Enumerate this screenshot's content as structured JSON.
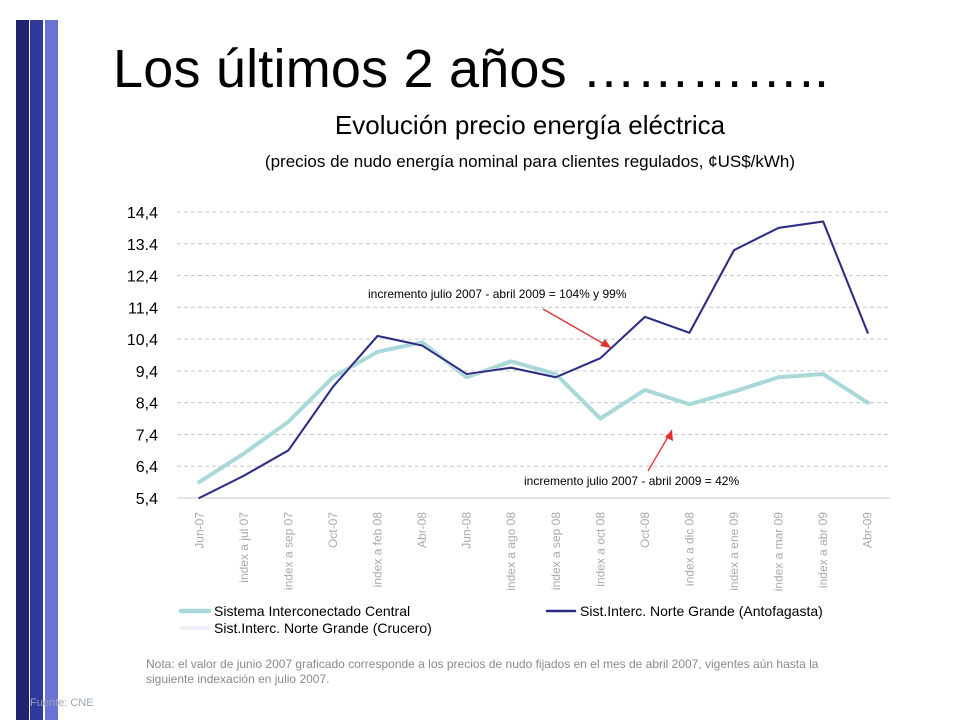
{
  "slide": {
    "title": "Los últimos 2 años …………..",
    "note": "Nota: el valor de junio 2007 graficado corresponde a los precios de nudo fijados en el mes de abril 2007, vigentes aún hasta la siguiente  indexación en julio 2007.",
    "source": "Fuente: CNE"
  },
  "chart_data": {
    "type": "line",
    "title": "Evolución precio energía eléctrica",
    "subtitle": "(precios de nudo energía nominal para clientes regulados, ¢US$/kWh)",
    "categories": [
      "Jun-07",
      "index a jul 07",
      "index a sep 07",
      "Oct-07",
      "index a feb 08",
      "Abr-08",
      "Jun-08",
      "index a ago 08",
      "index a sep 08",
      "index a oct 08",
      "Oct-08",
      "index a dic 08",
      "index a ene 09",
      "index a mar 09",
      "index a abr 09",
      "Abr-09"
    ],
    "yticks": [
      "5,4",
      "6,4",
      "7,4",
      "8,4",
      "9,4",
      "10,4",
      "11,4",
      "12,4",
      "13.4",
      "14,4"
    ],
    "ylim": [
      5.4,
      14.4
    ],
    "grid": true,
    "legend_position": "bottom",
    "series": [
      {
        "name": "Sistema Interconectado Central",
        "color": "#a8d8d8",
        "width": 4,
        "values": [
          5.9,
          6.8,
          7.8,
          9.2,
          10.0,
          10.3,
          9.2,
          9.7,
          9.3,
          7.9,
          8.8,
          8.35,
          8.75,
          9.2,
          9.3,
          8.4
        ]
      },
      {
        "name": "Sist.Interc. Norte Grande (Antofagasta)",
        "color": "#2a2c80",
        "width": 2,
        "values": [
          5.4,
          6.1,
          6.9,
          8.9,
          10.5,
          10.2,
          9.3,
          9.5,
          9.2,
          9.8,
          11.1,
          10.6,
          13.2,
          13.9,
          14.1,
          10.6
        ]
      },
      {
        "name": "Sist.Interc. Norte Grande (Crucero)",
        "color": "#eeeef6",
        "width": 3,
        "values": [
          5.4,
          6.1,
          6.9,
          8.9,
          10.5,
          10.2,
          9.3,
          9.5,
          9.2,
          9.8,
          11.1,
          10.6,
          13.2,
          13.9,
          14.1,
          10.6
        ]
      }
    ],
    "annotations": [
      {
        "text": "incremento julio 2007 - abril 2009 = 104% y 99%"
      },
      {
        "text": "incremento  julio 2007 - abril 2009 = 42%"
      }
    ]
  }
}
